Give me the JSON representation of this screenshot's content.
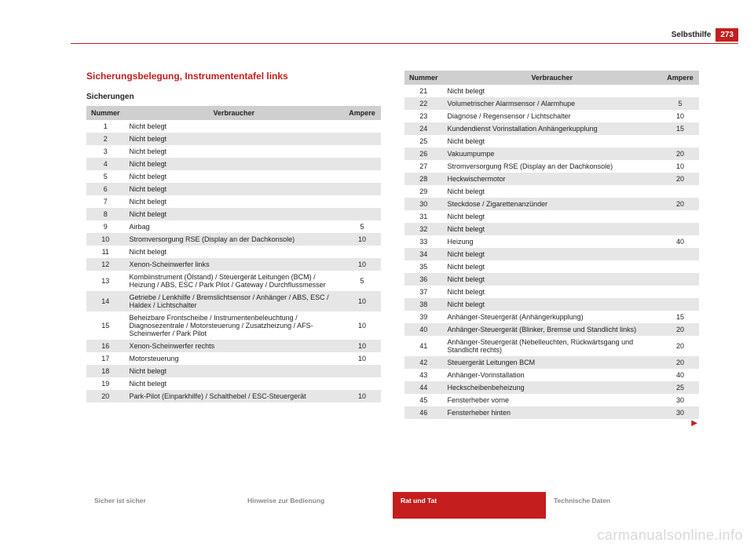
{
  "page": {
    "section": "Selbsthilfe",
    "number": "273",
    "heading": "Sicherungsbelegung, Instrumententafel links",
    "subheading": "Sicherungen",
    "watermark": "carmanualsonline.info"
  },
  "table": {
    "columns": [
      "Nummer",
      "Verbraucher",
      "Ampere"
    ],
    "rows_left": [
      {
        "n": "1",
        "v": "Nicht belegt",
        "a": ""
      },
      {
        "n": "2",
        "v": "Nicht belegt",
        "a": ""
      },
      {
        "n": "3",
        "v": "Nicht belegt",
        "a": ""
      },
      {
        "n": "4",
        "v": "Nicht belegt",
        "a": ""
      },
      {
        "n": "5",
        "v": "Nicht belegt",
        "a": ""
      },
      {
        "n": "6",
        "v": "Nicht belegt",
        "a": ""
      },
      {
        "n": "7",
        "v": "Nicht belegt",
        "a": ""
      },
      {
        "n": "8",
        "v": "Nicht belegt",
        "a": ""
      },
      {
        "n": "9",
        "v": "Airbag",
        "a": "5"
      },
      {
        "n": "10",
        "v": "Stromversorgung RSE (Display an der Dachkonsole)",
        "a": "10"
      },
      {
        "n": "11",
        "v": "Nicht belegt",
        "a": ""
      },
      {
        "n": "12",
        "v": "Xenon-Scheinwerfer links",
        "a": "10"
      },
      {
        "n": "13",
        "v": "Kombiinstrument (Ölstand) / Steuergerät Leitungen (BCM) / Heizung / ABS, ESC / Park Pilot / Gateway / Durchflussmesser",
        "a": "5"
      },
      {
        "n": "14",
        "v": "Getriebe / Lenkhilfe / Bremslichtsensor / Anhänger / ABS, ESC / Haldex / Lichtschalter",
        "a": "10"
      },
      {
        "n": "15",
        "v": "Beheizbare Frontscheibe / Instrumentenbeleuchtung / Diagnosezentrale / Motorsteuerung / Zusatzheizung / AFS-Scheinwerfer / Park Pilot",
        "a": "10"
      },
      {
        "n": "16",
        "v": "Xenon-Scheinwerfer rechts",
        "a": "10"
      },
      {
        "n": "17",
        "v": "Motorsteuerung",
        "a": "10"
      },
      {
        "n": "18",
        "v": "Nicht belegt",
        "a": ""
      },
      {
        "n": "19",
        "v": "Nicht belegt",
        "a": ""
      },
      {
        "n": "20",
        "v": "Park-Pilot (Einparkhilfe) / Schalthebel / ESC-Steuergerät",
        "a": "10"
      }
    ],
    "rows_right": [
      {
        "n": "21",
        "v": "Nicht belegt",
        "a": ""
      },
      {
        "n": "22",
        "v": "Volumetrischer Alarmsensor / Alarmhupe",
        "a": "5"
      },
      {
        "n": "23",
        "v": "Diagnose / Regensensor / Lichtschalter",
        "a": "10"
      },
      {
        "n": "24",
        "v": "Kundendienst Vorinstallation Anhängerkupplung",
        "a": "15"
      },
      {
        "n": "25",
        "v": "Nicht belegt",
        "a": ""
      },
      {
        "n": "26",
        "v": "Vakuumpumpe",
        "a": "20"
      },
      {
        "n": "27",
        "v": "Stromversorgung RSE (Display an der Dachkonsole)",
        "a": "10"
      },
      {
        "n": "28",
        "v": "Heckwischermotor",
        "a": "20"
      },
      {
        "n": "29",
        "v": "Nicht belegt",
        "a": ""
      },
      {
        "n": "30",
        "v": "Steckdose / Zigarettenanzünder",
        "a": "20"
      },
      {
        "n": "31",
        "v": "Nicht belegt",
        "a": ""
      },
      {
        "n": "32",
        "v": "Nicht belegt",
        "a": ""
      },
      {
        "n": "33",
        "v": "Heizung",
        "a": "40"
      },
      {
        "n": "34",
        "v": "Nicht belegt",
        "a": ""
      },
      {
        "n": "35",
        "v": "Nicht belegt",
        "a": ""
      },
      {
        "n": "36",
        "v": "Nicht belegt",
        "a": ""
      },
      {
        "n": "37",
        "v": "Nicht belegt",
        "a": ""
      },
      {
        "n": "38",
        "v": "Nicht belegt",
        "a": ""
      },
      {
        "n": "39",
        "v": "Anhänger-Steuergerät (Anhängerkupplung)",
        "a": "15"
      },
      {
        "n": "40",
        "v": "Anhänger-Steuergerät (Blinker, Bremse und Standlicht links)",
        "a": "20"
      },
      {
        "n": "41",
        "v": "Anhänger-Steuergerät (Nebelleuchten, Rückwärtsgang und Standlicht rechts)",
        "a": "20"
      },
      {
        "n": "42",
        "v": "Steuergerät Leitungen BCM",
        "a": "20"
      },
      {
        "n": "43",
        "v": "Anhänger-Vorinstallation",
        "a": "40"
      },
      {
        "n": "44",
        "v": "Heckscheibenbeheizung",
        "a": "25"
      },
      {
        "n": "45",
        "v": "Fensterheber vorne",
        "a": "30"
      },
      {
        "n": "46",
        "v": "Fensterheber hinten",
        "a": "30"
      }
    ]
  },
  "footer": {
    "tabs": [
      {
        "label": "Sicher ist sicher",
        "active": false
      },
      {
        "label": "Hinweise zur Bedienung",
        "active": false
      },
      {
        "label": "Rat und Tat",
        "active": true
      },
      {
        "label": "Technische Daten",
        "active": false
      }
    ]
  },
  "colors": {
    "accent": "#c41e1e",
    "header_row": "#cfcfcf",
    "row_alt": "#e6e6e6",
    "text": "#222222",
    "muted": "#888888",
    "watermark": "#d8d8d8"
  }
}
